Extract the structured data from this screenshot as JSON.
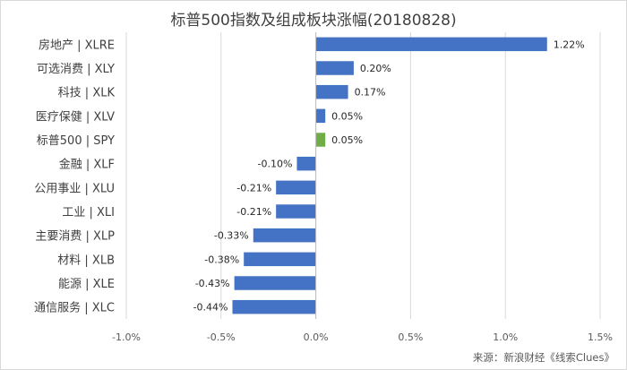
{
  "title": "标普500指数及组成板块涨幅(20180828)",
  "source": "来源：新浪财经《线索Clues》",
  "colors": {
    "bar": "#4472c4",
    "highlight": "#70ad47",
    "grid": "#d9d9d9",
    "axis": "#bfbfbf"
  },
  "chart_data": {
    "type": "bar",
    "orientation": "horizontal",
    "title": "标普500指数及组成板块涨幅(20180828)",
    "categories": [
      "房地产 | XLRE",
      "可选消费 | XLY",
      "科技 | XLK",
      "医疗保健 | XLV",
      "标普500 | SPY",
      "金融 | XLF",
      "公用事业 | XLU",
      "工业 | XLI",
      "主要消费 | XLP",
      "材料 | XLB",
      "能源 | XLE",
      "通信服务 | XLC"
    ],
    "values": [
      1.22,
      0.2,
      0.17,
      0.05,
      0.05,
      -0.1,
      -0.21,
      -0.21,
      -0.33,
      -0.38,
      -0.43,
      -0.44
    ],
    "value_labels": [
      "1.22%",
      "0.20%",
      "0.17%",
      "0.05%",
      "0.05%",
      "-0.10%",
      "-0.21%",
      "-0.21%",
      "-0.33%",
      "-0.38%",
      "-0.43%",
      "-0.44%"
    ],
    "highlight_index": 4,
    "xlim": [
      -1.0,
      1.5
    ],
    "xticks": [
      -1.0,
      -0.5,
      0.0,
      0.5,
      1.0,
      1.5
    ],
    "xtick_labels": [
      "-1.0%",
      "-0.5%",
      "0.0%",
      "0.5%",
      "1.0%",
      "1.5%"
    ],
    "grid": "vertical",
    "unit": "%"
  }
}
